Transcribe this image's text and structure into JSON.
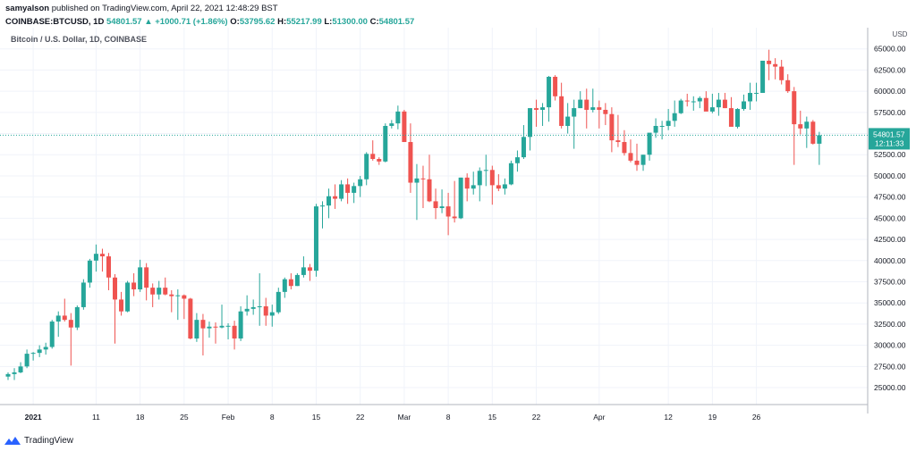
{
  "header": {
    "author": "samyalson",
    "published_text": "published on TradingView.com, April 22, 2021 12:48:29 BST",
    "symbol": "COINBASE:BTCUSD, 1D",
    "last": "54801.57",
    "change": "▲ +1000.71 (+1.86%)",
    "open_label": "O:",
    "open": "53795.62",
    "high_label": "H:",
    "high": "55217.99",
    "low_label": "L:",
    "low": "51300.00",
    "close_label": "C:",
    "close": "54801.57"
  },
  "chart_title": "Bitcoin / U.S. Dollar, 1D, COINBASE",
  "currency_label": "USD",
  "price_badge": {
    "price": "54801.57",
    "countdown": "12:11:33"
  },
  "footer": {
    "brand": "TradingView"
  },
  "colors": {
    "up": "#26a69a",
    "down": "#ef5350",
    "grid": "#f0f3fa",
    "axis_text": "#131722"
  },
  "chart_data": {
    "type": "candlestick",
    "title": "Bitcoin / U.S. Dollar, 1D, COINBASE",
    "ylim": [
      23000,
      67500
    ],
    "y_ticks": [
      25000,
      27500,
      30000,
      32500,
      35000,
      37500,
      40000,
      42500,
      45000,
      47500,
      50000,
      52500,
      55000,
      57500,
      60000,
      62500,
      65000
    ],
    "y_tick_labels": [
      "25000.00",
      "27500.00",
      "30000.00",
      "32500.00",
      "35000.00",
      "37500.00",
      "40000.00",
      "42500.00",
      "45000.00",
      "47500.00",
      "50000.00",
      "52500.00",
      "55000.00",
      "57500.00",
      "60000.00",
      "62500.00",
      "65000.00"
    ],
    "x_ticks": [
      {
        "label": "2021",
        "index": 4
      },
      {
        "label": "11",
        "index": 14
      },
      {
        "label": "18",
        "index": 21
      },
      {
        "label": "25",
        "index": 28
      },
      {
        "label": "Feb",
        "index": 35
      },
      {
        "label": "8",
        "index": 42
      },
      {
        "label": "15",
        "index": 49
      },
      {
        "label": "22",
        "index": 56
      },
      {
        "label": "Mar",
        "index": 63
      },
      {
        "label": "8",
        "index": 70
      },
      {
        "label": "15",
        "index": 77
      },
      {
        "label": "22",
        "index": 84
      },
      {
        "label": "Apr",
        "index": 94
      },
      {
        "label": "12",
        "index": 105
      },
      {
        "label": "19",
        "index": 112
      },
      {
        "label": "26",
        "index": 119
      }
    ],
    "last_price": 54801.57,
    "candles": [
      [
        26300,
        26800,
        25900,
        26600
      ],
      [
        26600,
        27300,
        25900,
        26800
      ],
      [
        26800,
        28000,
        26700,
        27500
      ],
      [
        27500,
        29500,
        27300,
        29000
      ],
      [
        29000,
        29200,
        28200,
        29100
      ],
      [
        29100,
        30000,
        28600,
        29500
      ],
      [
        29500,
        30300,
        28900,
        29800
      ],
      [
        29800,
        33000,
        29600,
        32800
      ],
      [
        32800,
        34000,
        31000,
        33500
      ],
      [
        33500,
        35500,
        32800,
        33000
      ],
      [
        33000,
        33800,
        27600,
        32100
      ],
      [
        32100,
        34700,
        31800,
        34500
      ],
      [
        34500,
        37800,
        34200,
        37400
      ],
      [
        37400,
        40200,
        36800,
        40000
      ],
      [
        40000,
        41900,
        38700,
        40800
      ],
      [
        40800,
        41400,
        38700,
        40500
      ],
      [
        40500,
        40900,
        36500,
        38000
      ],
      [
        38000,
        38400,
        30200,
        35400
      ],
      [
        35400,
        36300,
        33500,
        34000
      ],
      [
        34000,
        37600,
        33900,
        37400
      ],
      [
        37400,
        38500,
        35800,
        36600
      ],
      [
        36600,
        40100,
        36300,
        39200
      ],
      [
        39200,
        39700,
        35300,
        36800
      ],
      [
        36800,
        37300,
        34500,
        36000
      ],
      [
        36000,
        37600,
        35400,
        36800
      ],
      [
        36800,
        38000,
        35900,
        36000
      ],
      [
        36000,
        36500,
        33900,
        35800
      ],
      [
        35800,
        36600,
        33000,
        35900
      ],
      [
        35900,
        36000,
        33100,
        35500
      ],
      [
        35500,
        35600,
        30700,
        30800
      ],
      [
        30800,
        33800,
        30400,
        33000
      ],
      [
        33000,
        33700,
        28800,
        32000
      ],
      [
        32000,
        32800,
        30900,
        32200
      ],
      [
        32200,
        32700,
        30200,
        32100
      ],
      [
        32100,
        34800,
        32000,
        32300
      ],
      [
        32300,
        32600,
        30700,
        32300
      ],
      [
        32300,
        32900,
        29500,
        30800
      ],
      [
        30800,
        34600,
        30500,
        34000
      ],
      [
        34000,
        35900,
        33500,
        34300
      ],
      [
        34300,
        35400,
        33600,
        34500
      ],
      [
        34500,
        38500,
        32300,
        34600
      ],
      [
        34600,
        35600,
        32300,
        33500
      ],
      [
        33500,
        34800,
        32200,
        33900
      ],
      [
        33900,
        36800,
        33700,
        36300
      ],
      [
        36300,
        38000,
        35600,
        37800
      ],
      [
        37800,
        38500,
        36600,
        37000
      ],
      [
        37000,
        38500,
        37000,
        38300
      ],
      [
        38300,
        40500,
        38000,
        39200
      ],
      [
        39200,
        39600,
        37600,
        38800
      ],
      [
        38800,
        46700,
        38100,
        46400
      ],
      [
        46400,
        47000,
        43800,
        46500
      ],
      [
        46500,
        48500,
        45000,
        47600
      ],
      [
        47600,
        49000,
        46100,
        47300
      ],
      [
        47300,
        49500,
        47000,
        49000
      ],
      [
        49000,
        49700,
        46700,
        48000
      ],
      [
        48000,
        49200,
        46800,
        48800
      ],
      [
        48800,
        50000,
        47500,
        49600
      ],
      [
        49600,
        52800,
        48900,
        52600
      ],
      [
        52600,
        54200,
        51800,
        52000
      ],
      [
        52000,
        52200,
        51300,
        51700
      ],
      [
        51700,
        56200,
        51600,
        55900
      ],
      [
        55900,
        56600,
        55600,
        56200
      ],
      [
        56200,
        58300,
        55500,
        57600
      ],
      [
        57600,
        57800,
        54100,
        54000
      ],
      [
        54000,
        56200,
        48000,
        49200
      ],
      [
        49200,
        51400,
        44800,
        49700
      ],
      [
        49700,
        51200,
        46200,
        49600
      ],
      [
        49600,
        52500,
        46900,
        47000
      ],
      [
        47000,
        48500,
        44900,
        46200
      ],
      [
        46200,
        48400,
        45600,
        46400
      ],
      [
        46400,
        48000,
        43000,
        45200
      ],
      [
        45200,
        49400,
        44500,
        45000
      ],
      [
        45000,
        49800,
        44900,
        49800
      ],
      [
        49800,
        50300,
        47000,
        48500
      ],
      [
        48500,
        50500,
        47800,
        48900
      ],
      [
        48900,
        51000,
        47000,
        50600
      ],
      [
        50600,
        52500,
        48800,
        50700
      ],
      [
        50700,
        51200,
        46600,
        48900
      ],
      [
        48900,
        50200,
        48200,
        48500
      ],
      [
        48500,
        49700,
        47800,
        49000
      ],
      [
        49000,
        51800,
        48900,
        51500
      ],
      [
        51500,
        53000,
        50500,
        52200
      ],
      [
        52200,
        56000,
        52000,
        54600
      ],
      [
        54600,
        58000,
        53000,
        58000
      ],
      [
        58000,
        59000,
        55800,
        57800
      ],
      [
        57800,
        58600,
        55900,
        58100
      ],
      [
        58100,
        61800,
        56400,
        61700
      ],
      [
        61700,
        61900,
        58900,
        59400
      ],
      [
        59400,
        61000,
        55600,
        55900
      ],
      [
        55900,
        58600,
        55000,
        57000
      ],
      [
        57000,
        59000,
        53200,
        58000
      ],
      [
        58000,
        60000,
        58000,
        59000
      ],
      [
        59000,
        60300,
        55600,
        57800
      ],
      [
        57800,
        60300,
        57500,
        58100
      ],
      [
        58100,
        58900,
        55600,
        57800
      ],
      [
        57800,
        58600,
        56000,
        57300
      ],
      [
        57300,
        58100,
        52800,
        54200
      ],
      [
        54200,
        57200,
        53400,
        54000
      ],
      [
        54000,
        55400,
        52400,
        52700
      ],
      [
        52700,
        54300,
        51600,
        51800
      ],
      [
        51800,
        53800,
        50600,
        51300
      ],
      [
        51300,
        52500,
        50600,
        52500
      ],
      [
        52500,
        55000,
        51800,
        55100
      ],
      [
        55100,
        56800,
        54500,
        55900
      ],
      [
        55900,
        56500,
        54300,
        55900
      ],
      [
        55900,
        57900,
        55400,
        56500
      ],
      [
        56500,
        58900,
        55800,
        57400
      ],
      [
        57400,
        59100,
        57300,
        58900
      ],
      [
        58900,
        59700,
        58200,
        58800
      ],
      [
        58800,
        59400,
        57700,
        58800
      ],
      [
        58800,
        59400,
        58000,
        59200
      ],
      [
        59200,
        60000,
        57800,
        57600
      ],
      [
        57600,
        59700,
        57400,
        58100
      ],
      [
        58100,
        59800,
        57100,
        59000
      ],
      [
        59000,
        59800,
        58000,
        58000
      ],
      [
        58000,
        59300,
        56000,
        55800
      ],
      [
        55800,
        58000,
        55600,
        57900
      ],
      [
        57900,
        59600,
        57700,
        58800
      ],
      [
        58800,
        61000,
        57800,
        59800
      ],
      [
        59800,
        61000,
        58800,
        59800
      ],
      [
        59800,
        63600,
        59800,
        63600
      ],
      [
        63600,
        64900,
        61300,
        63200
      ],
      [
        63200,
        63900,
        61400,
        62900
      ],
      [
        62900,
        63700,
        60800,
        61300
      ],
      [
        61300,
        62000,
        59800,
        60000
      ],
      [
        60000,
        60500,
        51300,
        56100
      ],
      [
        56100,
        57700,
        54900,
        55600
      ],
      [
        55600,
        57000,
        53300,
        56400
      ],
      [
        56400,
        56600,
        53700,
        53800
      ],
      [
        53800,
        55200,
        51300,
        54800
      ]
    ]
  }
}
